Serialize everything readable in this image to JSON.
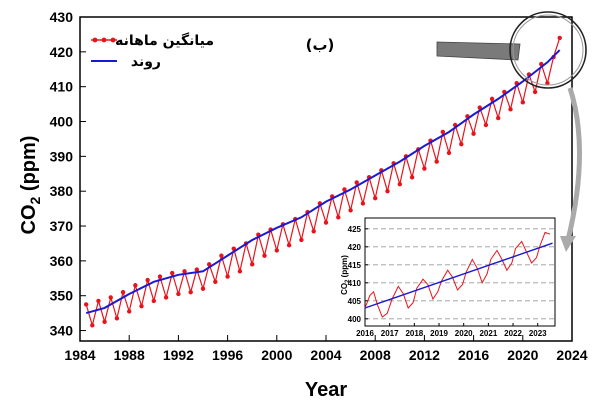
{
  "chart_data": [
    {
      "type": "line",
      "panel_label": "(ب)",
      "xlabel": "Year",
      "ylabel_main": "CO",
      "ylabel_sub": "2",
      "ylabel_unit": " (ppm)",
      "xlim": [
        1984,
        2024
      ],
      "ylim": [
        337,
        430
      ],
      "xticks": [
        "1984",
        "1988",
        "1992",
        "1996",
        "2000",
        "2004",
        "2008",
        "2012",
        "2016",
        "2020",
        "2024"
      ],
      "yticks": [
        "340",
        "350",
        "360",
        "370",
        "380",
        "390",
        "400",
        "410",
        "420",
        "430"
      ],
      "legend_position": "top-left",
      "series": [
        {
          "name": "میانگین ماهانه",
          "color": "#e8141c",
          "marker": "circle",
          "x": [
            1984.5,
            1985.0,
            1985.5,
            1986.0,
            1986.5,
            1987.0,
            1987.5,
            1988.0,
            1988.5,
            1989.0,
            1989.5,
            1990.0,
            1990.5,
            1991.0,
            1991.5,
            1992.0,
            1992.5,
            1993.0,
            1993.5,
            1994.0,
            1994.5,
            1995.0,
            1995.5,
            1996.0,
            1996.5,
            1997.0,
            1997.5,
            1998.0,
            1998.5,
            1999.0,
            1999.5,
            2000.0,
            2000.5,
            2001.0,
            2001.5,
            2002.0,
            2002.5,
            2003.0,
            2003.5,
            2004.0,
            2004.5,
            2005.0,
            2005.5,
            2006.0,
            2006.5,
            2007.0,
            2007.5,
            2008.0,
            2008.5,
            2009.0,
            2009.5,
            2010.0,
            2010.5,
            2011.0,
            2011.5,
            2012.0,
            2012.5,
            2013.0,
            2013.5,
            2014.0,
            2014.5,
            2015.0,
            2015.5,
            2016.0,
            2016.5,
            2017.0,
            2017.5,
            2018.0,
            2018.5,
            2019.0,
            2019.5,
            2020.0,
            2020.5,
            2021.0,
            2021.5,
            2022.0,
            2022.5,
            2023.0
          ],
          "values": [
            347.5,
            341.5,
            348.5,
            342.5,
            349.5,
            343.5,
            351.0,
            345.5,
            353.0,
            347.0,
            354.5,
            348.5,
            355.5,
            349.5,
            356.5,
            350.5,
            357.0,
            351.0,
            357.5,
            352.0,
            359.0,
            354.0,
            361.5,
            355.5,
            363.5,
            357.0,
            365.0,
            359.0,
            367.5,
            361.5,
            369.0,
            363.0,
            370.5,
            364.5,
            372.0,
            366.0,
            374.0,
            368.5,
            376.5,
            371.0,
            378.5,
            372.5,
            380.5,
            374.5,
            382.5,
            376.5,
            384.0,
            378.0,
            386.0,
            380.0,
            388.0,
            382.0,
            390.0,
            384.0,
            392.0,
            386.5,
            394.5,
            388.5,
            397.0,
            391.0,
            399.0,
            393.5,
            401.5,
            396.5,
            404.0,
            399.0,
            406.5,
            401.0,
            408.5,
            403.5,
            411.0,
            405.5,
            413.5,
            408.5,
            416.5,
            411.0,
            418.5,
            424.0
          ]
        },
        {
          "name": "روند",
          "color": "#1a1ad0",
          "marker": "none",
          "x": [
            1984.5,
            1986,
            1988,
            1990,
            1992,
            1994,
            1996,
            1998,
            2000,
            2002,
            2004,
            2006,
            2008,
            2010,
            2012,
            2014,
            2016,
            2018,
            2020,
            2022,
            2023
          ],
          "values": [
            345.0,
            346.5,
            350.5,
            354.0,
            356.0,
            357.0,
            361.5,
            366.0,
            369.5,
            372.5,
            377.0,
            380.5,
            384.5,
            388.5,
            393.0,
            397.0,
            402.0,
            406.5,
            411.5,
            417.0,
            420.5
          ]
        }
      ]
    },
    {
      "type": "line",
      "inset": true,
      "ylabel_main": "CO",
      "ylabel_sub": "2",
      "ylabel_unit": " (ppm)",
      "xlim": [
        2016,
        2023.7
      ],
      "ylim": [
        398,
        428
      ],
      "xticks": [
        "2016",
        "2017",
        "2018",
        "2019",
        "2020",
        "2021",
        "2022",
        "2023"
      ],
      "yticks": [
        "400",
        "405",
        "410",
        "415",
        "420",
        "425"
      ],
      "grid": "horizontal-dashed",
      "series": [
        {
          "color": "#e8141c",
          "x": [
            2016.0,
            2016.2,
            2016.35,
            2016.5,
            2016.7,
            2016.9,
            2017.1,
            2017.35,
            2017.55,
            2017.75,
            2017.95,
            2018.1,
            2018.35,
            2018.55,
            2018.75,
            2018.95,
            2019.1,
            2019.35,
            2019.55,
            2019.75,
            2019.95,
            2020.1,
            2020.35,
            2020.55,
            2020.75,
            2020.95,
            2021.1,
            2021.35,
            2021.55,
            2021.75,
            2021.95,
            2022.1,
            2022.35,
            2022.55,
            2022.75,
            2022.95,
            2023.1,
            2023.3,
            2023.5
          ],
          "values": [
            403.0,
            406.5,
            407.5,
            404.0,
            400.5,
            401.5,
            405.5,
            409.0,
            407.0,
            403.0,
            404.5,
            408.5,
            411.0,
            409.5,
            405.5,
            407.5,
            410.5,
            413.5,
            411.5,
            408.0,
            409.5,
            413.0,
            416.5,
            414.0,
            410.0,
            412.5,
            416.5,
            419.0,
            416.5,
            413.5,
            415.5,
            419.5,
            421.5,
            418.5,
            415.5,
            417.0,
            420.5,
            424.0,
            423.5
          ]
        },
        {
          "color": "#1a1ad0",
          "x": [
            2016.0,
            2023.6
          ],
          "values": [
            403.0,
            421.0
          ]
        }
      ]
    }
  ]
}
